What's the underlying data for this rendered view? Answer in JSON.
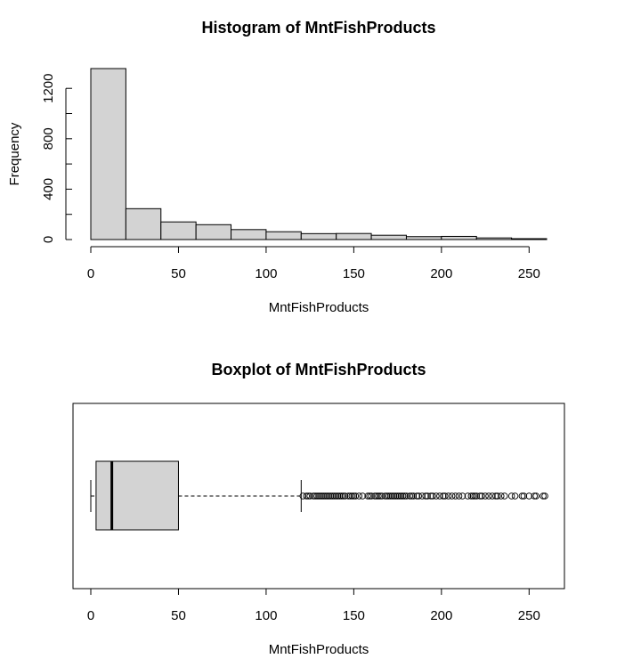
{
  "chart_data": [
    {
      "type": "histogram",
      "title": "Histogram of MntFishProducts",
      "xlabel": "MntFishProducts",
      "ylabel": "Frequency",
      "xlim": [
        0,
        260
      ],
      "ylim": [
        0,
        1400
      ],
      "x_ticks": [
        0,
        50,
        100,
        150,
        200,
        250
      ],
      "y_ticks": [
        0,
        400,
        800,
        1200
      ],
      "bin_edges": [
        0,
        20,
        40,
        60,
        80,
        100,
        120,
        140,
        160,
        180,
        200,
        220,
        240,
        260
      ],
      "values": [
        1357,
        245,
        140,
        118,
        79,
        62,
        47,
        48,
        34,
        23,
        25,
        13,
        7
      ],
      "bar_color": "#d3d3d3"
    },
    {
      "type": "boxplot",
      "title": "Boxplot of MntFishProducts",
      "xlabel": "MntFishProducts",
      "xlim": [
        0,
        260
      ],
      "x_ticks": [
        0,
        50,
        100,
        150,
        200,
        250
      ],
      "whisker_low": 0,
      "q1": 3,
      "median": 12,
      "q3": 50,
      "whisker_high": 120,
      "outliers": [
        121,
        123,
        124,
        125,
        127,
        128,
        129,
        130,
        131,
        132,
        133,
        134,
        135,
        136,
        137,
        138,
        139,
        140,
        141,
        142,
        143,
        144,
        145,
        147,
        148,
        149,
        150,
        151,
        153,
        155,
        158,
        159,
        160,
        162,
        163,
        164,
        165,
        166,
        168,
        169,
        170,
        171,
        172,
        173,
        174,
        175,
        176,
        177,
        178,
        179,
        180,
        182,
        183,
        184,
        186,
        187,
        189,
        191,
        192,
        194,
        195,
        197,
        199,
        201,
        202,
        204,
        206,
        208,
        210,
        212,
        215,
        217,
        218,
        219,
        220,
        222,
        223,
        225,
        227,
        229,
        231,
        232,
        234,
        236,
        240,
        242,
        246,
        247,
        250,
        253,
        254,
        258,
        259
      ],
      "box_color": "#d3d3d3"
    }
  ]
}
